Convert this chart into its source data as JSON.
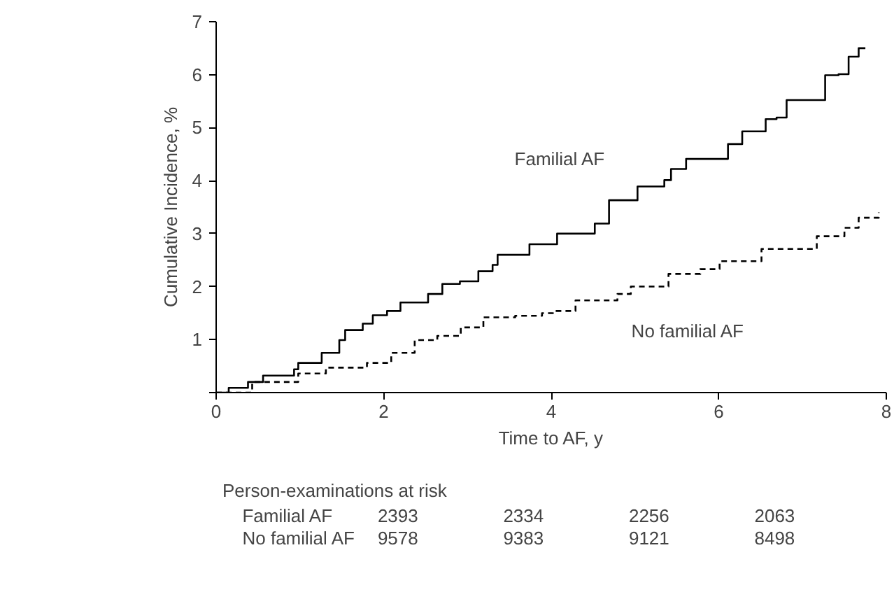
{
  "chart_data": {
    "type": "step",
    "xlabel": "Time to AF, y",
    "ylabel": "Cumulative Incidence, %",
    "xlim": [
      0,
      8
    ],
    "ylim": [
      0,
      7
    ],
    "xticks": [
      0,
      2,
      4,
      6,
      8
    ],
    "yticks": [
      {
        "value": 0,
        "label": null
      },
      1,
      2,
      3,
      4,
      5,
      6,
      7
    ],
    "grid": false,
    "marker": "none",
    "series": [
      {
        "name": "Familial AF",
        "color": "#000000",
        "line_style": "solid",
        "x": [
          0,
          0.15,
          0.38,
          0.56,
          0.93,
          0.98,
          1.26,
          1.47,
          1.54,
          1.75,
          1.87,
          2.04,
          2.2,
          2.53,
          2.7,
          2.91,
          3.13,
          3.3,
          3.36,
          3.74,
          4.07,
          4.52,
          4.69,
          5.03,
          5.35,
          5.43,
          5.61,
          6.11,
          6.28,
          6.56,
          6.69,
          6.81,
          7.27,
          7.43,
          7.55,
          7.67,
          7.75
        ],
        "values": [
          0,
          0.09,
          0.2,
          0.32,
          0.44,
          0.56,
          0.75,
          0.99,
          1.18,
          1.3,
          1.46,
          1.54,
          1.7,
          1.86,
          2.05,
          2.1,
          2.29,
          2.41,
          2.6,
          2.8,
          3.0,
          3.19,
          3.63,
          3.89,
          4.01,
          4.22,
          4.41,
          4.69,
          4.93,
          5.16,
          5.19,
          5.52,
          5.99,
          6.01,
          6.34,
          6.5,
          6.5
        ]
      },
      {
        "name": "No familial AF",
        "color": "#000000",
        "line_style": "dashed",
        "x": [
          0,
          0.43,
          0.98,
          1.31,
          1.8,
          2.09,
          2.37,
          2.64,
          2.92,
          3.19,
          3.57,
          3.89,
          4.02,
          4.29,
          4.79,
          4.95,
          5.4,
          5.78,
          6.01,
          6.51,
          7.17,
          7.5,
          7.67,
          7.91
        ],
        "values": [
          0,
          0.2,
          0.36,
          0.47,
          0.56,
          0.75,
          0.99,
          1.07,
          1.23,
          1.42,
          1.45,
          1.5,
          1.54,
          1.74,
          1.86,
          2.0,
          2.24,
          2.33,
          2.48,
          2.71,
          2.95,
          3.11,
          3.3,
          3.4
        ]
      }
    ],
    "annotations": [
      "Person-examinations at risk",
      "Familial AF",
      "2393",
      "2334",
      "2256",
      "2063",
      "No familial AF",
      "9578",
      "9383",
      "9121",
      "8498"
    ]
  }
}
